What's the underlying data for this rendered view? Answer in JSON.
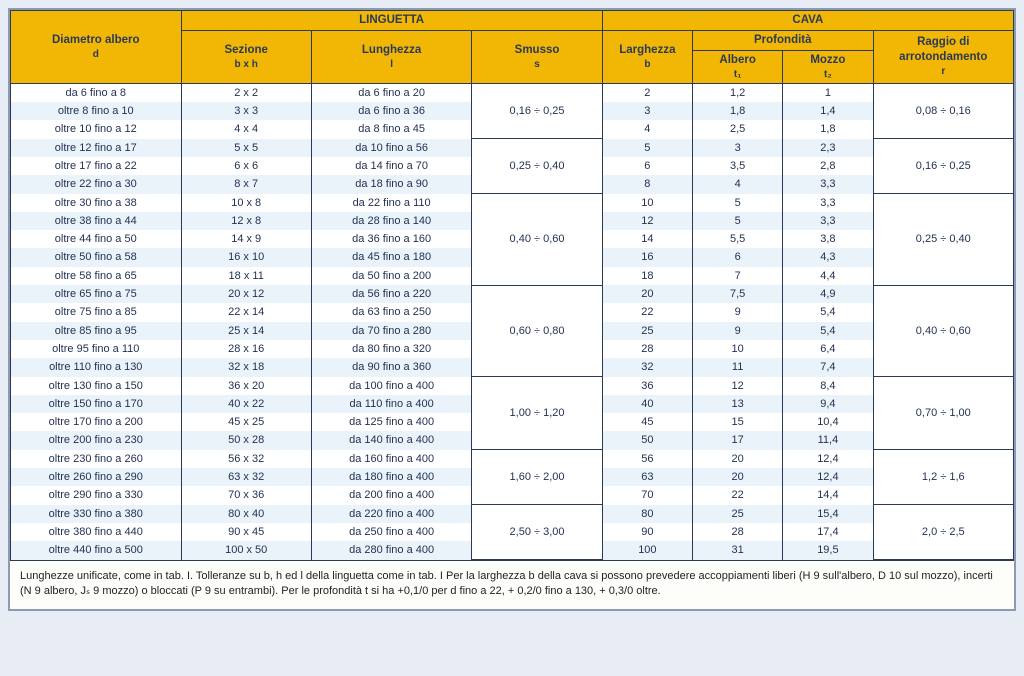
{
  "colors": {
    "header_bg": "#f2b705",
    "stripe_bg": "#eaf2fa",
    "border": "#2a3a55",
    "page_bg": "#e8edf5"
  },
  "headers": {
    "diametro": "Diametro albero",
    "diametro_sub": "d",
    "linguetta": "LINGUETTA",
    "cava": "CAVA",
    "sezione": "Sezione",
    "sezione_sub": "b x h",
    "lunghezza": "Lunghezza",
    "lunghezza_sub": "l",
    "smusso": "Smusso",
    "smusso_sub": "s",
    "larghezza": "Larghezza",
    "larghezza_sub": "b",
    "profondita": "Profondità",
    "albero": "Albero",
    "albero_sub": "t₁",
    "mozzo": "Mozzo",
    "mozzo_sub": "t₂",
    "raggio": "Raggio di arrotondamento",
    "raggio_sub": "r"
  },
  "rows": [
    {
      "d": "da 6 fino a 8",
      "sez": "2 x 2",
      "lun": "da 6 fino a 20",
      "b": "2",
      "t1": "1,2",
      "t2": "1"
    },
    {
      "d": "oltre 8 fino a 10",
      "sez": "3 x 3",
      "lun": "da 6 fino a 36",
      "b": "3",
      "t1": "1,8",
      "t2": "1,4"
    },
    {
      "d": "oltre 10 fino a 12",
      "sez": "4 x 4",
      "lun": "da 8 fino a 45",
      "b": "4",
      "t1": "2,5",
      "t2": "1,8"
    },
    {
      "d": "oltre 12 fino a 17",
      "sez": "5 x 5",
      "lun": "da 10 fino a 56",
      "b": "5",
      "t1": "3",
      "t2": "2,3"
    },
    {
      "d": "oltre 17 fino a 22",
      "sez": "6 x 6",
      "lun": "da 14 fino a 70",
      "b": "6",
      "t1": "3,5",
      "t2": "2,8"
    },
    {
      "d": "oltre 22 fino a 30",
      "sez": "8 x 7",
      "lun": "da 18 fino a 90",
      "b": "8",
      "t1": "4",
      "t2": "3,3"
    },
    {
      "d": "oltre 30 fino a 38",
      "sez": "10 x 8",
      "lun": "da 22 fino a 110",
      "b": "10",
      "t1": "5",
      "t2": "3,3"
    },
    {
      "d": "oltre 38 fino a 44",
      "sez": "12 x 8",
      "lun": "da 28 fino a 140",
      "b": "12",
      "t1": "5",
      "t2": "3,3"
    },
    {
      "d": "oltre 44 fino a 50",
      "sez": "14 x 9",
      "lun": "da 36 fino a 160",
      "b": "14",
      "t1": "5,5",
      "t2": "3,8"
    },
    {
      "d": "oltre 50 fino a 58",
      "sez": "16 x 10",
      "lun": "da 45 fino a 180",
      "b": "16",
      "t1": "6",
      "t2": "4,3"
    },
    {
      "d": "oltre 58 fino a 65",
      "sez": "18 x 11",
      "lun": "da 50 fino a 200",
      "b": "18",
      "t1": "7",
      "t2": "4,4"
    },
    {
      "d": "oltre 65 fino a 75",
      "sez": "20 x 12",
      "lun": "da 56 fino a 220",
      "b": "20",
      "t1": "7,5",
      "t2": "4,9"
    },
    {
      "d": "oltre 75 fino a 85",
      "sez": "22 x 14",
      "lun": "da 63 fino a 250",
      "b": "22",
      "t1": "9",
      "t2": "5,4"
    },
    {
      "d": "oltre 85 fino a 95",
      "sez": "25 x 14",
      "lun": "da 70 fino a 280",
      "b": "25",
      "t1": "9",
      "t2": "5,4"
    },
    {
      "d": "oltre 95 fino a 110",
      "sez": "28 x 16",
      "lun": "da 80 fino a 320",
      "b": "28",
      "t1": "10",
      "t2": "6,4"
    },
    {
      "d": "oltre 110 fino a 130",
      "sez": "32 x 18",
      "lun": "da 90 fino a 360",
      "b": "32",
      "t1": "11",
      "t2": "7,4"
    },
    {
      "d": "oltre 130 fino a 150",
      "sez": "36 x 20",
      "lun": "da 100 fino a 400",
      "b": "36",
      "t1": "12",
      "t2": "8,4"
    },
    {
      "d": "oltre 150 fino a 170",
      "sez": "40 x 22",
      "lun": "da 110 fino a 400",
      "b": "40",
      "t1": "13",
      "t2": "9,4"
    },
    {
      "d": "oltre 170 fino a 200",
      "sez": "45 x 25",
      "lun": "da 125 fino a 400",
      "b": "45",
      "t1": "15",
      "t2": "10,4"
    },
    {
      "d": "oltre 200 fino a 230",
      "sez": "50 x 28",
      "lun": "da 140 fino a 400",
      "b": "50",
      "t1": "17",
      "t2": "11,4"
    },
    {
      "d": "oltre 230 fino a 260",
      "sez": "56 x 32",
      "lun": "da 160 fino a 400",
      "b": "56",
      "t1": "20",
      "t2": "12,4"
    },
    {
      "d": "oltre 260 fino a 290",
      "sez": "63 x 32",
      "lun": "da 180 fino a 400",
      "b": "63",
      "t1": "20",
      "t2": "12,4"
    },
    {
      "d": "oltre 290 fino a 330",
      "sez": "70 x 36",
      "lun": "da 200 fino a 400",
      "b": "70",
      "t1": "22",
      "t2": "14,4"
    },
    {
      "d": "oltre 330 fino a 380",
      "sez": "80 x 40",
      "lun": "da 220 fino a 400",
      "b": "80",
      "t1": "25",
      "t2": "15,4"
    },
    {
      "d": "oltre 380 fino a 440",
      "sez": "90 x 45",
      "lun": "da 250 fino a 400",
      "b": "90",
      "t1": "28",
      "t2": "17,4"
    },
    {
      "d": "oltre 440 fino a 500",
      "sez": "100 x 50",
      "lun": "da 280 fino a 400",
      "b": "100",
      "t1": "31",
      "t2": "19,5"
    }
  ],
  "smusso_groups": [
    {
      "start": 0,
      "span": 3,
      "val": "0,16 ÷ 0,25"
    },
    {
      "start": 3,
      "span": 3,
      "val": "0,25 ÷ 0,40"
    },
    {
      "start": 6,
      "span": 5,
      "val": "0,40 ÷ 0,60"
    },
    {
      "start": 11,
      "span": 5,
      "val": "0,60 ÷ 0,80"
    },
    {
      "start": 16,
      "span": 4,
      "val": "1,00 ÷ 1,20"
    },
    {
      "start": 20,
      "span": 3,
      "val": "1,60 ÷ 2,00"
    },
    {
      "start": 23,
      "span": 3,
      "val": "2,50 ÷ 3,00"
    }
  ],
  "raggio_groups": [
    {
      "start": 0,
      "span": 3,
      "val": "0,08 ÷ 0,16"
    },
    {
      "start": 3,
      "span": 3,
      "val": "0,16 ÷ 0,25"
    },
    {
      "start": 6,
      "span": 5,
      "val": "0,25 ÷ 0,40"
    },
    {
      "start": 11,
      "span": 5,
      "val": "0,40 ÷ 0,60"
    },
    {
      "start": 16,
      "span": 4,
      "val": "0,70 ÷ 1,00"
    },
    {
      "start": 20,
      "span": 3,
      "val": "1,2 ÷ 1,6"
    },
    {
      "start": 23,
      "span": 3,
      "val": "2,0 ÷ 2,5"
    }
  ],
  "footnote": "Lunghezze unificate, come in tab. I. Tolleranze su b, h ed l della linguetta come in tab. I Per la larghezza b della cava si possono prevedere accoppiamenti liberi (H 9 sull'albero, D 10 sul mozzo), incerti (N 9 albero, Jₛ 9 mozzo) o bloccati (P 9 su entrambi). Per le profondità t si ha +0,1/0 per d fino a 22, + 0,2/0 fino a 130, + 0,3/0 oltre."
}
